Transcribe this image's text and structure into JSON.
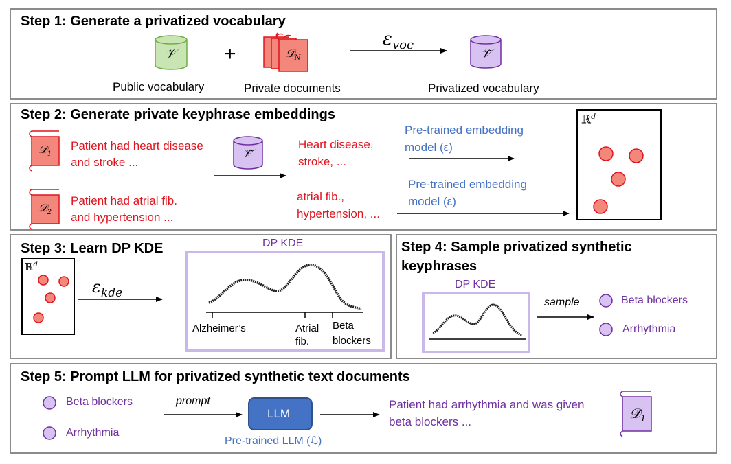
{
  "step1": {
    "title": "Step 1: Generate a privatized vocabulary",
    "plus": "+",
    "public_label": "Public vocabulary",
    "private_label": "Private documents",
    "privatized_label": "Privatized vocabulary",
    "epsilon_main": "ε",
    "epsilon_sub": "voc",
    "vocab_symbol": "𝒱",
    "privatized_symbol": "𝒱̃",
    "doc_symbol": "𝒟",
    "doc_sub": "N"
  },
  "step2": {
    "title": "Step 2: Generate private keyphrase embeddings",
    "doc1_text": [
      "Patient had heart disease",
      "and stroke ..."
    ],
    "doc2_text": [
      "Patient had atrial fib.",
      "and hypertension ..."
    ],
    "doc1_symbol": "𝒟",
    "doc1_sub": "1",
    "doc2_symbol": "𝒟",
    "doc2_sub": "2",
    "keyphrases1": [
      "Heart disease,",
      "stroke, ..."
    ],
    "keyphrases2": [
      "atrial fib.,",
      "hypertension, ..."
    ],
    "model1": [
      "Pre-trained embedding",
      "model (ε)"
    ],
    "model2": [
      "Pre-trained embedding",
      "model (ε)"
    ],
    "space_label": "ℝ",
    "space_sup": "d",
    "vocab_symbol": "𝒱̃"
  },
  "step3": {
    "title": "Step 3: Learn DP KDE",
    "space_label": "ℝ",
    "space_sup": "d",
    "epsilon_main": "ε",
    "epsilon_sub": "kde",
    "kde_title": "DP KDE",
    "tick_alzheimers": "Alzheimer’s",
    "tick_atrial": [
      "Atrial",
      "fib."
    ],
    "tick_beta": [
      "Beta",
      "blockers"
    ]
  },
  "step4": {
    "title": [
      "Step 4: Sample privatized synthetic",
      "keyphrases"
    ],
    "kde_title": "DP KDE",
    "sample_label": "sample",
    "item1": "Beta blockers",
    "item2": "Arrhythmia"
  },
  "step5": {
    "title": "Step 5: Prompt LLM for privatized synthetic text documents",
    "item1": "Beta blockers",
    "item2": "Arrhythmia",
    "prompt_label": "prompt",
    "llm_label": "LLM",
    "llm_caption": "Pre-trained LLM (ℒ)",
    "output_text": [
      "Patient had arrhythmia and was given",
      "beta blockers ..."
    ],
    "doc_symbol": "𝒟̃",
    "doc_sub": "1"
  },
  "colors": {
    "red_text": "#e0141e",
    "blue_text": "#4472c4",
    "purple_text": "#7030a0",
    "panel_border": "#8c8c8c",
    "kde_border": "#c9b8e8",
    "node_red": "#f4877b",
    "node_purple": "#d8c2f2",
    "llm_box": "#4472c4",
    "green_cyl": "#c9e5b4"
  }
}
